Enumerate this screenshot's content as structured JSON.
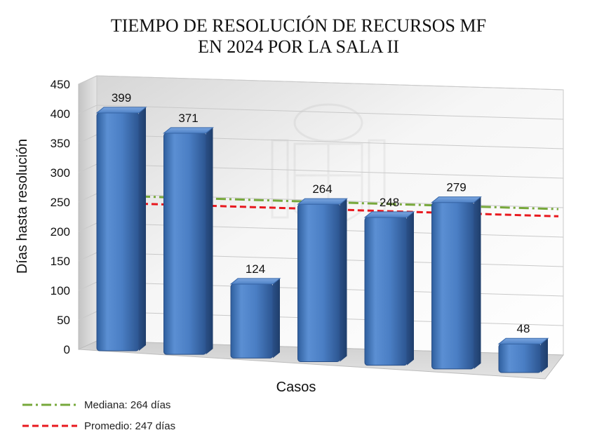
{
  "chart_data": {
    "type": "bar",
    "title_lines": [
      "TIEMPO DE RESOLUCIÓN DE RECURSOS MF",
      "EN 2024 POR LA SALA II"
    ],
    "xlabel": "Casos",
    "ylabel": "Días hasta resolución",
    "ylim": [
      0,
      450
    ],
    "yticks": [
      0,
      50,
      100,
      150,
      200,
      250,
      300,
      350,
      400,
      450
    ],
    "values": [
      399,
      371,
      124,
      264,
      248,
      279,
      48
    ],
    "data_labels": [
      "399",
      "371",
      "124",
      "264",
      "248",
      "279",
      "48"
    ],
    "grid": true,
    "legend_position": "bottom-left",
    "reference_lines": [
      {
        "name": "Mediana: 264 días",
        "value": 264,
        "style": "dash-dot",
        "color": "#77a83b"
      },
      {
        "name": "Promedio: 247 días",
        "value": 247,
        "style": "dashed",
        "color": "#e8181e"
      }
    ],
    "bar_color": "#4a7ec4"
  }
}
